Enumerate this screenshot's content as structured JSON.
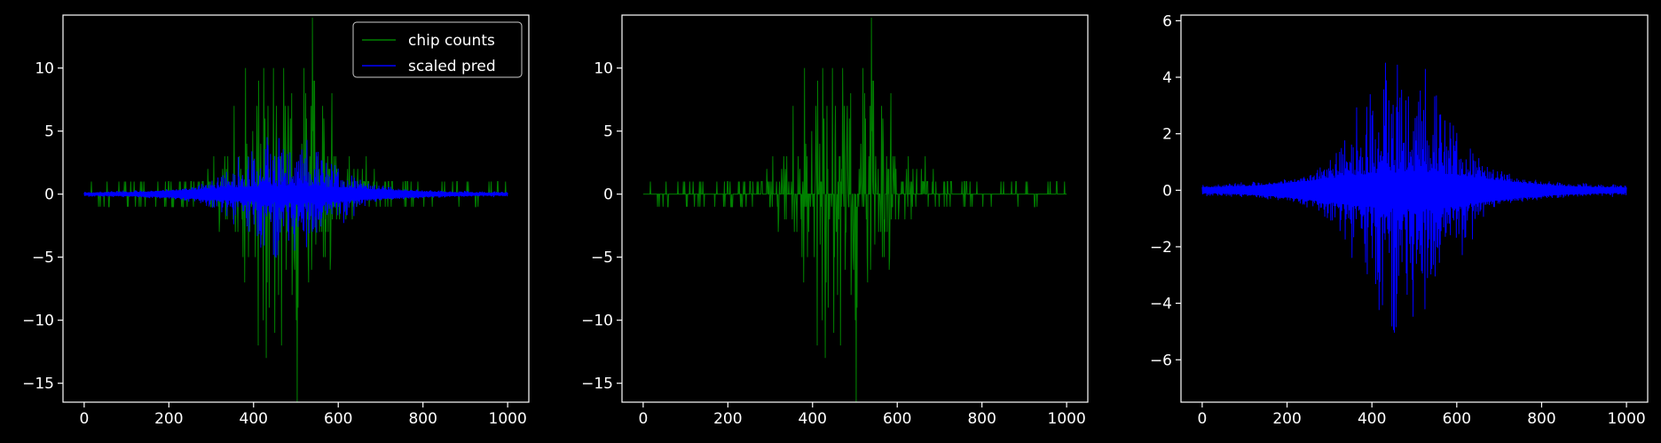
{
  "figure": {
    "background": "#000000",
    "foreground": "#ffffff"
  },
  "chart_data": [
    {
      "type": "line",
      "xlim": [
        -50,
        1050
      ],
      "ylim": [
        -16.5,
        14.2
      ],
      "x_ticks": [
        0,
        200,
        400,
        600,
        800,
        1000
      ],
      "y_ticks": [
        -15,
        -10,
        -5,
        0,
        5,
        10
      ],
      "legend": {
        "placement": "top-right",
        "entries": [
          {
            "label": "chip counts",
            "color": "#008000"
          },
          {
            "label": "scaled pred",
            "color": "#0000ff"
          }
        ]
      },
      "series": [
        {
          "name": "chip counts",
          "color": "#008000",
          "style": "counts",
          "x_range": [
            0,
            1000
          ],
          "seed": 11
        },
        {
          "name": "scaled pred",
          "color": "#0000ff",
          "style": "pred",
          "x_range": [
            0,
            1000
          ],
          "seed": 23
        }
      ]
    },
    {
      "type": "line",
      "xlim": [
        -50,
        1050
      ],
      "ylim": [
        -16.5,
        14.2
      ],
      "x_ticks": [
        0,
        200,
        400,
        600,
        800,
        1000
      ],
      "y_ticks": [
        -15,
        -10,
        -5,
        0,
        5,
        10
      ],
      "series": [
        {
          "color": "#008000",
          "style": "counts",
          "x_range": [
            0,
            1000
          ],
          "seed": 11
        }
      ]
    },
    {
      "type": "line",
      "xlim": [
        -50,
        1050
      ],
      "ylim": [
        -7.5,
        6.2
      ],
      "x_ticks": [
        0,
        200,
        400,
        600,
        800,
        1000
      ],
      "y_ticks": [
        -6,
        -4,
        -2,
        0,
        2,
        4,
        6
      ],
      "series": [
        {
          "color": "#0000ff",
          "style": "pred",
          "x_range": [
            0,
            1000
          ],
          "seed": 23
        }
      ]
    }
  ]
}
